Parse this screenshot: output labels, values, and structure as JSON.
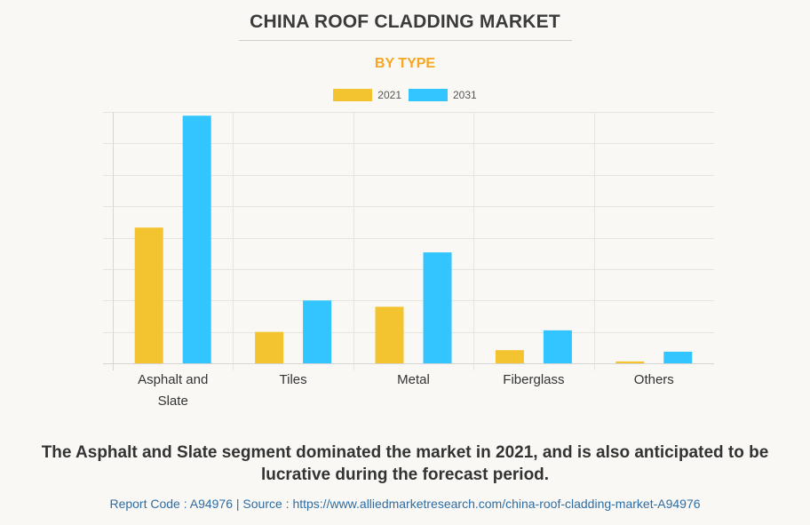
{
  "header": {
    "title": "CHINA ROOF CLADDING MARKET",
    "subtitle": "BY TYPE",
    "subtitle_color": "#f5a623"
  },
  "legend": [
    {
      "label": "2021",
      "color": "#f4c430"
    },
    {
      "label": "2031",
      "color": "#33c5ff"
    }
  ],
  "chart_data": {
    "type": "bar",
    "title": "CHINA ROOF CLADDING MARKET",
    "subtitle": "BY TYPE",
    "xlabel": "",
    "ylabel": "",
    "y_units_note": "relative (no y-axis tick labels shown; values in gridline units)",
    "ylim": [
      0,
      8
    ],
    "grid": true,
    "legend_position": "top-center",
    "categories": [
      "Asphalt and Slate",
      "Tiles",
      "Metal",
      "Fiberglass",
      "Others"
    ],
    "category_lines": [
      [
        "Asphalt and",
        "Slate"
      ],
      [
        "Tiles"
      ],
      [
        "Metal"
      ],
      [
        "Fiberglass"
      ],
      [
        "Others"
      ]
    ],
    "series": [
      {
        "name": "2021",
        "color": "#f4c430",
        "values": [
          4.32,
          1.0,
          1.8,
          0.42,
          0.06
        ]
      },
      {
        "name": "2031",
        "color": "#33c5ff",
        "values": [
          7.88,
          2.0,
          3.53,
          1.05,
          0.37
        ]
      }
    ]
  },
  "footer": {
    "caption": "The Asphalt and Slate segment dominated the market in 2021, and is also anticipated to be lucrative during the forecast period.",
    "source": "Report Code : A94976  |  Source : https://www.alliedmarketresearch.com/china-roof-cladding-market-A94976"
  }
}
